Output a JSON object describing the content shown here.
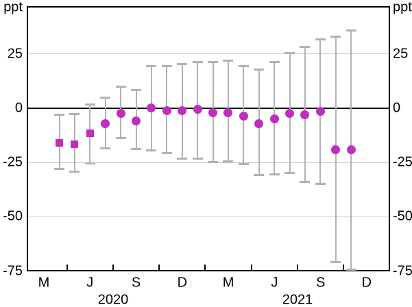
{
  "chart_data": {
    "type": "scatter",
    "title": "",
    "unit": "ppt",
    "axis_unit_label_left": "ppt",
    "axis_unit_label_right": "ppt",
    "ylim": [
      -75,
      46.7
    ],
    "yticks": [
      {
        "value": 25,
        "label": "25"
      },
      {
        "value": 0,
        "label": "0"
      },
      {
        "value": -25,
        "label": "-25"
      },
      {
        "value": -50,
        "label": "-50"
      },
      {
        "value": -75,
        "label": "-75"
      }
    ],
    "gridline_values": [
      25,
      -25,
      -50
    ],
    "zero_line_value": 0,
    "grid": true,
    "legend": "none",
    "x_axis": {
      "month_tick_labels": [
        "M",
        "J",
        "S",
        "D",
        "M",
        "J",
        "S",
        "D"
      ],
      "year_labels": [
        "2020",
        "2021"
      ]
    },
    "points": [
      {
        "month": "Apr 2020",
        "marker": "square",
        "value": -16,
        "ci_low": -28,
        "ci_high": -3
      },
      {
        "month": "May 2020",
        "marker": "square",
        "value": -16.5,
        "ci_low": -29.5,
        "ci_high": -2.5
      },
      {
        "month": "Jun 2020",
        "marker": "square",
        "value": -11.5,
        "ci_low": -25.5,
        "ci_high": 2
      },
      {
        "month": "Jul 2020",
        "marker": "circle",
        "value": -7,
        "ci_low": -18.5,
        "ci_high": 5
      },
      {
        "month": "Aug 2020",
        "marker": "circle",
        "value": -2.5,
        "ci_low": -14,
        "ci_high": 10
      },
      {
        "month": "Sep 2020",
        "marker": "circle",
        "value": -6,
        "ci_low": -19,
        "ci_high": 8.5
      },
      {
        "month": "Oct 2020",
        "marker": "circle",
        "value": 0,
        "ci_low": -19.5,
        "ci_high": 19.5
      },
      {
        "month": "Nov 2020",
        "marker": "circle",
        "value": -1,
        "ci_low": -21,
        "ci_high": 19.5
      },
      {
        "month": "Dec 2020",
        "marker": "circle",
        "value": -1,
        "ci_low": -23.5,
        "ci_high": 20.5
      },
      {
        "month": "Jan 2021",
        "marker": "circle",
        "value": -0.5,
        "ci_low": -23.5,
        "ci_high": 21.5
      },
      {
        "month": "Feb 2021",
        "marker": "circle",
        "value": -2,
        "ci_low": -25,
        "ci_high": 21.5
      },
      {
        "month": "Mar 2021",
        "marker": "circle",
        "value": -2,
        "ci_low": -24.5,
        "ci_high": 22
      },
      {
        "month": "Apr 2021",
        "marker": "circle",
        "value": -3.5,
        "ci_low": -26,
        "ci_high": 19.5
      },
      {
        "month": "May 2021",
        "marker": "circle",
        "value": -7,
        "ci_low": -31,
        "ci_high": 18
      },
      {
        "month": "Jun 2021",
        "marker": "circle",
        "value": -5,
        "ci_low": -30.5,
        "ci_high": 21.5
      },
      {
        "month": "Jul 2021",
        "marker": "circle",
        "value": -2.5,
        "ci_low": -30,
        "ci_high": 25.5
      },
      {
        "month": "Aug 2021",
        "marker": "circle",
        "value": -3,
        "ci_low": -34,
        "ci_high": 28.5
      },
      {
        "month": "Sep 2021",
        "marker": "circle",
        "value": -1.5,
        "ci_low": -35,
        "ci_high": 32
      },
      {
        "month": "Oct 2021",
        "marker": "circle",
        "value": -19,
        "ci_low": -71,
        "ci_high": 33
      },
      {
        "month": "Nov 2021",
        "marker": "circle",
        "value": -19,
        "ci_low": -74.5,
        "ci_high": 36
      }
    ],
    "colors": {
      "marker": "#c02ec0",
      "error_bar": "#b2b2b2",
      "gridline": "#c5c5c5",
      "axis": "#000000",
      "background": "#ffffff"
    }
  }
}
